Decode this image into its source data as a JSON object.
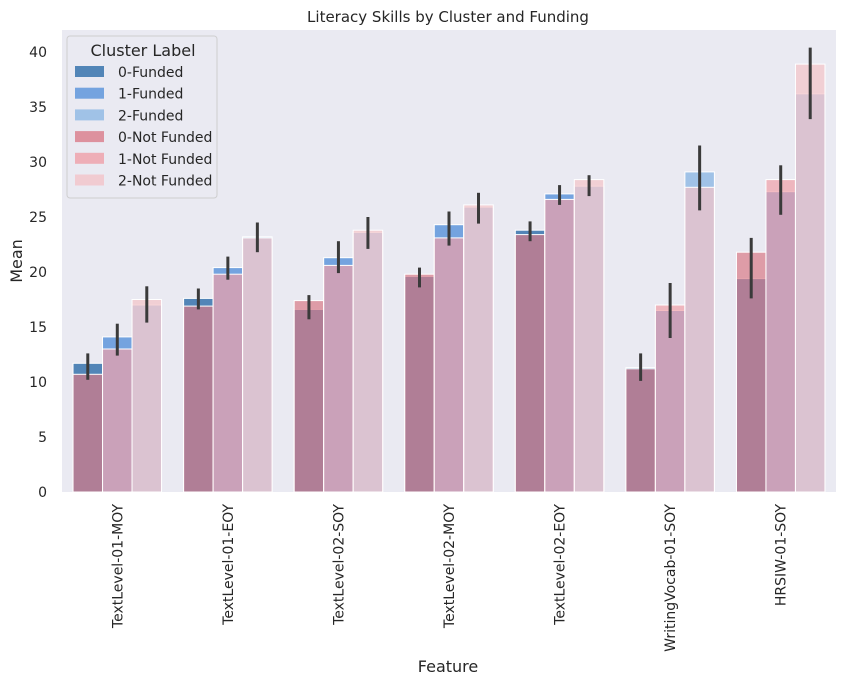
{
  "chart_data": {
    "type": "bar",
    "title": "Literacy Skills by Cluster and Funding",
    "xlabel": "Feature",
    "ylabel": "Mean",
    "ylim": [
      0,
      42
    ],
    "yticks": [
      0,
      5,
      10,
      15,
      20,
      25,
      30,
      35,
      40
    ],
    "grid": false,
    "legend_placement": "top-left",
    "legend_title": "Cluster Label",
    "categories": [
      "TextLevel-01-MOY",
      "TextLevel-01-EOY",
      "TextLevel-02-SOY",
      "TextLevel-02-MOY",
      "TextLevel-02-EOY",
      "WritingVocab-01-SOY",
      "HRSIW-01-SOY"
    ],
    "funded_series": [
      {
        "name": "0-Funded",
        "color": "#4a7fb3",
        "values": [
          11.7,
          17.6,
          16.6,
          19.6,
          23.8,
          11.3,
          19.4
        ]
      },
      {
        "name": "1-Funded",
        "color": "#6e9fdd",
        "values": [
          14.1,
          20.4,
          21.3,
          24.3,
          27.1,
          16.5,
          27.3
        ]
      },
      {
        "name": "2-Funded",
        "color": "#9cc0e6",
        "values": [
          17.0,
          23.2,
          23.6,
          25.9,
          27.8,
          29.1,
          36.2
        ]
      }
    ],
    "not_funded_series": [
      {
        "name": "0-Not Funded",
        "color": "#d97b88",
        "values": [
          10.7,
          16.9,
          17.4,
          19.8,
          23.4,
          11.2,
          21.8
        ]
      },
      {
        "name": "1-Not Funded",
        "color": "#ef9fa8",
        "values": [
          13.0,
          19.8,
          20.6,
          23.1,
          26.6,
          17.0,
          28.4
        ]
      },
      {
        "name": "2-Not Funded",
        "color": "#f3c3c8",
        "values": [
          17.5,
          23.1,
          23.8,
          26.1,
          28.4,
          27.7,
          38.9
        ]
      }
    ],
    "error_bars": [
      [
        [
          10.2,
          12.6
        ],
        [
          16.6,
          18.5
        ],
        [
          15.7,
          17.9
        ],
        [
          18.6,
          20.4
        ],
        [
          22.8,
          24.6
        ],
        [
          10.1,
          12.6
        ],
        [
          17.6,
          23.1
        ]
      ],
      [
        [
          12.4,
          15.3
        ],
        [
          19.3,
          21.4
        ],
        [
          19.9,
          22.8
        ],
        [
          22.4,
          25.5
        ],
        [
          26.1,
          27.9
        ],
        [
          14.0,
          19.0
        ],
        [
          25.2,
          29.7
        ]
      ],
      [
        [
          15.4,
          18.7
        ],
        [
          21.8,
          24.5
        ],
        [
          22.1,
          25.0
        ],
        [
          24.4,
          27.2
        ],
        [
          26.9,
          28.8
        ],
        [
          25.6,
          31.5
        ],
        [
          33.9,
          40.4
        ]
      ]
    ]
  }
}
